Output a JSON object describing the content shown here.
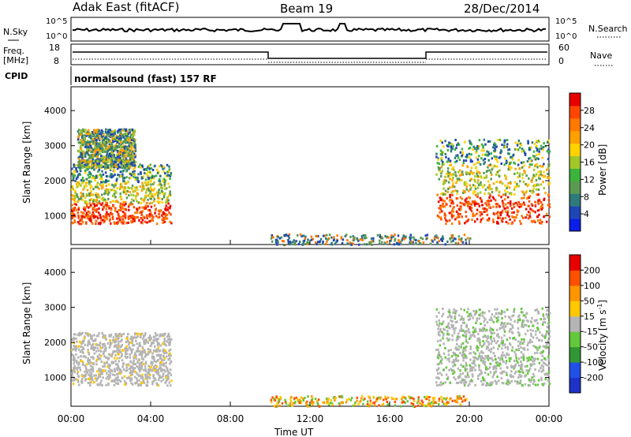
{
  "header": {
    "station": "Adak East (fitACF)",
    "beam": "Beam 19",
    "date": "28/Dec/2014"
  },
  "noise_panel": {
    "left_label": "N.Sky",
    "right_label": "N.Search",
    "top_tick": "10^5",
    "bottom_tick": "10^0"
  },
  "freq_panel": {
    "left_label_1": "Freq.",
    "left_label_2": "[MHz]",
    "right_label": "Nave",
    "left_ticks": [
      "18",
      "8"
    ],
    "right_ticks": [
      "60",
      "0"
    ]
  },
  "cpid": {
    "label": "CPID",
    "text": "normalsound (fast) 157 RF"
  },
  "chart_data": [
    {
      "type": "heatmap",
      "title": "Power",
      "xlabel": "",
      "ylabel": "Slant Range [km]",
      "yticks": [
        "1000",
        "2000",
        "3000",
        "4000"
      ],
      "colorbar_label": "Power [dB]",
      "colorbar_ticks": [
        "4",
        "8",
        "12",
        "16",
        "20",
        "24",
        "28"
      ],
      "colorbar_colors": [
        "#0a1ee6",
        "#1e46b4",
        "#2f7a7a",
        "#5a9a52",
        "#3cb43c",
        "#a0c828",
        "#ffd200",
        "#ffa000",
        "#ff7800",
        "#ff4600",
        "#e60000"
      ],
      "regions": [
        {
          "t0": 0.0,
          "t1": 5.0,
          "r0": 800,
          "r1": 2500,
          "level": "high"
        },
        {
          "t0": 0.3,
          "t1": 3.2,
          "r0": 2400,
          "r1": 3500,
          "level": "mixed"
        },
        {
          "t0": 18.3,
          "t1": 24.0,
          "r0": 800,
          "r1": 3200,
          "level": "high"
        },
        {
          "t0": 10.0,
          "t1": 20.0,
          "r0": 200,
          "r1": 500,
          "level": "low"
        }
      ]
    },
    {
      "type": "heatmap",
      "title": "Velocity",
      "xlabel": "Time UT",
      "ylabel": "Slant Range [km]",
      "yticks": [
        "1000",
        "2000",
        "3000",
        "4000"
      ],
      "xticks": [
        "00:00",
        "04:00",
        "08:00",
        "12:00",
        "16:00",
        "20:00",
        "00:00"
      ],
      "colorbar_label": "Velocity [m s",
      "colorbar_ticks": [
        "200",
        "100",
        "50",
        "15",
        "-15",
        "-50",
        "-100",
        "-200"
      ],
      "colorbar_colors": [
        "#1e32c8",
        "#2050e6",
        "#329632",
        "#64c83c",
        "#b4b4b4",
        "#ffc800",
        "#ff9600",
        "#ff5000",
        "#e60000"
      ],
      "regions": [
        {
          "t0": 0.0,
          "t1": 5.0,
          "r0": 800,
          "r1": 2300,
          "level": "gray"
        },
        {
          "t0": 18.3,
          "t1": 24.0,
          "r0": 800,
          "r1": 3000,
          "level": "gray-green"
        },
        {
          "t0": 10.0,
          "t1": 20.0,
          "r0": 200,
          "r1": 500,
          "level": "orange"
        }
      ]
    }
  ]
}
